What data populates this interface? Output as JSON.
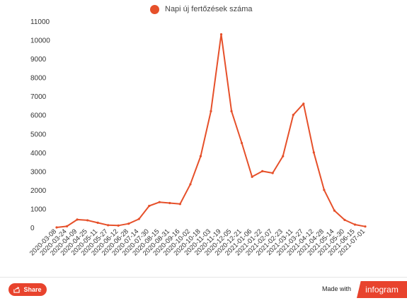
{
  "colors": {
    "series": "#e6502a",
    "share_bg": "#e8432d",
    "brand_bg": "#e8432d"
  },
  "legend": {
    "label": "Napi új fertőzések száma"
  },
  "footer": {
    "share_label": "Share",
    "made_with": "Made with",
    "brand": "infogram"
  },
  "chart_data": {
    "type": "line",
    "legend_placement": "top",
    "grid": false,
    "series": [
      {
        "name": "Napi új fertőzések száma",
        "x": [
          "2020-03-08",
          "2020-03-24",
          "2020-04-09",
          "2020-04-25",
          "2020-05-11",
          "2020-05-27",
          "2020-06-12",
          "2020-06-28",
          "2020-07-14",
          "2020-07-30",
          "2020-08-15",
          "2020-08-31",
          "2020-09-16",
          "2020-10-02",
          "2020-10-18",
          "2020-11-03",
          "2020-11-19",
          "2020-12-05",
          "2020-12-21",
          "2021-01-06",
          "2021-01-22",
          "2021-02-07",
          "2021-02-23",
          "2021-03-11",
          "2021-03-27",
          "2021-04-12",
          "2021-04-28",
          "2021-05-14",
          "2021-05-30",
          "2021-06-15",
          "2021-07-01"
        ],
        "values": [
          0,
          60,
          420,
          380,
          250,
          120,
          100,
          200,
          450,
          1150,
          1350,
          1300,
          1250,
          2300,
          3800,
          6200,
          10300,
          6200,
          4500,
          2700,
          3000,
          2900,
          3800,
          6000,
          6600,
          4000,
          2000,
          900,
          400,
          150,
          50
        ]
      }
    ],
    "x_tick_labels": [
      "2020-03-08",
      "2020-03-24",
      "2020-04-09",
      "2020-04-25",
      "2020-05-11",
      "2020-05-27",
      "2020-06-12",
      "2020-06-28",
      "2020-07-14",
      "2020-07-30",
      "2020-08-15",
      "2020-08-31",
      "2020-09-16",
      "2020-10-02",
      "2020-10-18",
      "2020-11-03",
      "2020-11-19",
      "2020-12-05",
      "2020-12-21",
      "2021-01-06",
      "2021-01-22",
      "2021-02-07",
      "2021-02-23",
      "2021-03-11",
      "2021-03-27",
      "2021-04-12",
      "2021-04-28",
      "2021-05-14",
      "2021-05-30",
      "2021-06-15",
      "2021-07-01"
    ],
    "y_tick_labels": [
      "0",
      "1000",
      "2000",
      "3000",
      "4000",
      "5000",
      "6000",
      "7000",
      "8000",
      "9000",
      "10000",
      "11000"
    ],
    "ylim": [
      0,
      11000
    ]
  }
}
